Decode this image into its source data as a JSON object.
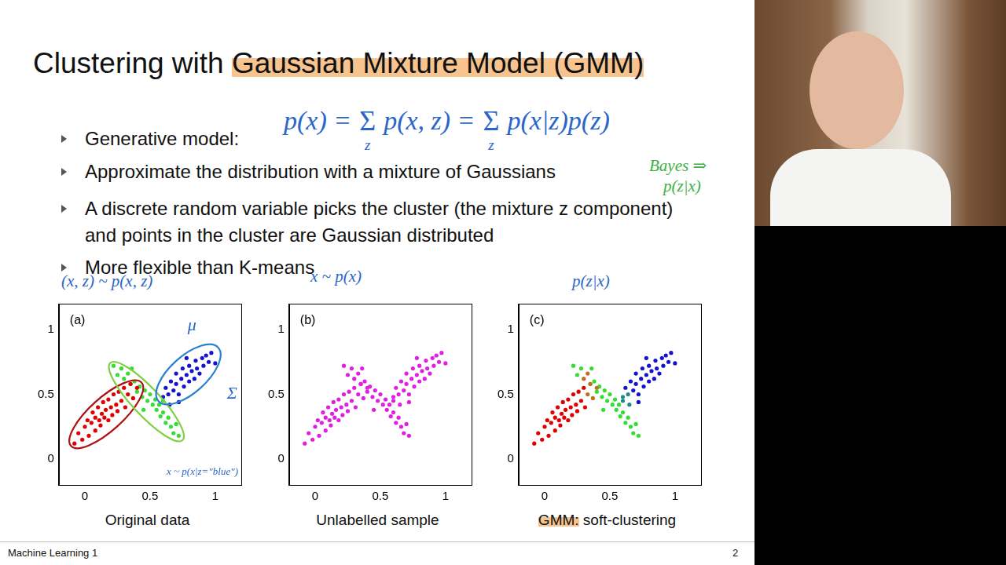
{
  "slide": {
    "title": "Clustering with Gaussian Mixture Model (GMM)",
    "highlights": [
      "Gaussian Mixture Model (GMM)",
      "GMM:"
    ],
    "bullets": [
      "Generative model:",
      "Approximate the distribution with a mixture of Gaussians",
      "A discrete random variable picks the cluster (the mixture z component) and points in the cluster are Gaussian distributed",
      "More flexible than K-means"
    ],
    "footer": "Machine Learning 1",
    "page": 2
  },
  "handwriting": {
    "formula": [
      {
        "text": "p(x) ="
      },
      {
        "sum": "Σ",
        "sub": "z"
      },
      {
        "text": "p(x, z) ="
      },
      {
        "sum": "Σ",
        "sub": "z"
      },
      {
        "text": "p(x|z)p(z)"
      }
    ],
    "bayes": [
      "Bayes ⇒",
      "p(z|x)"
    ],
    "above_charts": [
      "(x, z) ~ p(x, z)",
      "x ~ p(x)",
      "p(z|x)"
    ],
    "panel_a": [
      "μ",
      "Σ",
      "x ~ p(x|z=\"blue\")"
    ]
  },
  "chart_data": [
    {
      "type": "scatter",
      "title": "(a)",
      "xlabel": "Original data",
      "xlim": [
        -0.2,
        1.2
      ],
      "ylim": [
        -0.2,
        1.2
      ],
      "xticks": [
        0,
        0.5,
        1
      ],
      "yticks": [
        0,
        0.5,
        1
      ],
      "grid": false,
      "series": [
        {
          "color": "#e00000",
          "x": [
            -0.08,
            -0.05,
            -0.02,
            0.0,
            0.02,
            0.03,
            0.05,
            0.06,
            0.08,
            0.08,
            0.1,
            0.11,
            0.12,
            0.13,
            0.14,
            0.15,
            0.16,
            0.18,
            0.18,
            0.2,
            0.21,
            0.22,
            0.24,
            0.25,
            0.26,
            0.28,
            0.3,
            0.31,
            0.33,
            0.35,
            0.37,
            0.4
          ],
          "y": [
            0.12,
            0.2,
            0.15,
            0.25,
            0.3,
            0.18,
            0.28,
            0.36,
            0.22,
            0.32,
            0.4,
            0.3,
            0.26,
            0.35,
            0.44,
            0.32,
            0.38,
            0.3,
            0.46,
            0.4,
            0.34,
            0.5,
            0.42,
            0.37,
            0.52,
            0.45,
            0.55,
            0.4,
            0.5,
            0.58,
            0.47,
            0.55
          ]
        },
        {
          "color": "#33dd33",
          "x": [
            0.22,
            0.25,
            0.28,
            0.3,
            0.33,
            0.35,
            0.38,
            0.4,
            0.42,
            0.44,
            0.46,
            0.48,
            0.5,
            0.52,
            0.54,
            0.55,
            0.57,
            0.58,
            0.6,
            0.62,
            0.64,
            0.66,
            0.68,
            0.7,
            0.72,
            0.45,
            0.36,
            0.6
          ],
          "y": [
            0.72,
            0.65,
            0.7,
            0.62,
            0.66,
            0.58,
            0.6,
            0.52,
            0.56,
            0.48,
            0.53,
            0.45,
            0.5,
            0.42,
            0.46,
            0.38,
            0.42,
            0.33,
            0.36,
            0.28,
            0.32,
            0.25,
            0.2,
            0.27,
            0.18,
            0.38,
            0.7,
            0.45
          ]
        },
        {
          "color": "#1414d0",
          "x": [
            0.6,
            0.62,
            0.64,
            0.66,
            0.68,
            0.7,
            0.7,
            0.72,
            0.74,
            0.75,
            0.76,
            0.78,
            0.8,
            0.8,
            0.82,
            0.84,
            0.85,
            0.86,
            0.88,
            0.9,
            0.91,
            0.93,
            0.95,
            0.97,
            0.72,
            0.65,
            0.78,
            1.0
          ],
          "y": [
            0.48,
            0.55,
            0.5,
            0.6,
            0.53,
            0.58,
            0.66,
            0.5,
            0.62,
            0.7,
            0.56,
            0.65,
            0.6,
            0.72,
            0.68,
            0.62,
            0.76,
            0.7,
            0.66,
            0.78,
            0.72,
            0.8,
            0.75,
            0.82,
            0.44,
            0.42,
            0.78,
            0.74
          ]
        }
      ]
    },
    {
      "type": "scatter",
      "title": "(b)",
      "xlabel": "Unlabelled sample",
      "xlim": [
        -0.2,
        1.2
      ],
      "ylim": [
        -0.2,
        1.2
      ],
      "xticks": [
        0,
        0.5,
        1
      ],
      "yticks": [
        0,
        0.5,
        1
      ],
      "grid": false,
      "series": [
        {
          "color": "#e020e0",
          "x": [
            -0.08,
            -0.05,
            -0.02,
            0.0,
            0.02,
            0.03,
            0.05,
            0.06,
            0.08,
            0.08,
            0.1,
            0.11,
            0.12,
            0.13,
            0.14,
            0.15,
            0.16,
            0.18,
            0.18,
            0.2,
            0.21,
            0.22,
            0.24,
            0.25,
            0.26,
            0.28,
            0.3,
            0.31,
            0.33,
            0.35,
            0.37,
            0.4,
            0.22,
            0.25,
            0.28,
            0.3,
            0.33,
            0.35,
            0.38,
            0.4,
            0.42,
            0.44,
            0.46,
            0.48,
            0.5,
            0.52,
            0.54,
            0.55,
            0.57,
            0.58,
            0.6,
            0.62,
            0.64,
            0.66,
            0.68,
            0.7,
            0.72,
            0.45,
            0.36,
            0.6,
            0.6,
            0.62,
            0.64,
            0.66,
            0.68,
            0.7,
            0.7,
            0.72,
            0.74,
            0.75,
            0.76,
            0.78,
            0.8,
            0.8,
            0.82,
            0.84,
            0.85,
            0.86,
            0.88,
            0.9,
            0.91,
            0.93,
            0.95,
            0.97,
            0.72,
            0.65,
            0.78,
            1.0
          ],
          "y": [
            0.12,
            0.2,
            0.15,
            0.25,
            0.3,
            0.18,
            0.28,
            0.36,
            0.22,
            0.32,
            0.4,
            0.3,
            0.26,
            0.35,
            0.44,
            0.32,
            0.38,
            0.3,
            0.46,
            0.4,
            0.34,
            0.5,
            0.42,
            0.37,
            0.52,
            0.45,
            0.55,
            0.4,
            0.5,
            0.58,
            0.47,
            0.55,
            0.72,
            0.65,
            0.7,
            0.62,
            0.66,
            0.58,
            0.6,
            0.52,
            0.56,
            0.48,
            0.53,
            0.45,
            0.5,
            0.42,
            0.46,
            0.38,
            0.42,
            0.33,
            0.36,
            0.28,
            0.32,
            0.25,
            0.2,
            0.27,
            0.18,
            0.38,
            0.7,
            0.45,
            0.48,
            0.55,
            0.5,
            0.6,
            0.53,
            0.58,
            0.66,
            0.5,
            0.62,
            0.7,
            0.56,
            0.65,
            0.6,
            0.72,
            0.68,
            0.62,
            0.76,
            0.7,
            0.66,
            0.78,
            0.72,
            0.8,
            0.75,
            0.82,
            0.44,
            0.42,
            0.78,
            0.74
          ]
        }
      ]
    },
    {
      "type": "scatter",
      "title": "(c)",
      "xlabel": "GMM: soft-clustering",
      "xlim": [
        -0.2,
        1.2
      ],
      "ylim": [
        -0.2,
        1.2
      ],
      "xticks": [
        0,
        0.5,
        1
      ],
      "yticks": [
        0,
        0.5,
        1
      ],
      "grid": false,
      "series": [
        {
          "color": "#e00000",
          "x": [
            -0.08,
            -0.05,
            -0.02,
            0.0,
            0.02,
            0.03,
            0.05,
            0.06,
            0.08,
            0.08,
            0.1,
            0.11,
            0.12,
            0.13,
            0.14,
            0.15,
            0.16,
            0.18,
            0.18,
            0.2,
            0.21,
            0.22,
            0.24,
            0.25,
            0.26,
            0.28,
            0.3,
            0.31
          ],
          "y": [
            0.12,
            0.2,
            0.15,
            0.25,
            0.3,
            0.18,
            0.28,
            0.36,
            0.22,
            0.32,
            0.4,
            0.3,
            0.26,
            0.35,
            0.44,
            0.32,
            0.38,
            0.3,
            0.46,
            0.4,
            0.34,
            0.5,
            0.42,
            0.37,
            0.52,
            0.45,
            0.55,
            0.4
          ]
        },
        {
          "color": "#c0701c",
          "x": [
            0.33,
            0.35,
            0.37,
            0.4,
            0.3,
            0.33
          ],
          "y": [
            0.5,
            0.58,
            0.47,
            0.55,
            0.62,
            0.66
          ]
        },
        {
          "color": "#33dd33",
          "x": [
            0.22,
            0.25,
            0.28,
            0.35,
            0.38,
            0.4,
            0.42,
            0.44,
            0.46,
            0.48,
            0.5,
            0.52,
            0.54,
            0.55,
            0.57,
            0.58,
            0.6,
            0.62,
            0.64,
            0.66,
            0.68,
            0.7,
            0.72,
            0.45,
            0.36
          ],
          "y": [
            0.72,
            0.65,
            0.7,
            0.58,
            0.6,
            0.52,
            0.56,
            0.48,
            0.53,
            0.45,
            0.5,
            0.42,
            0.46,
            0.38,
            0.42,
            0.33,
            0.36,
            0.28,
            0.32,
            0.25,
            0.2,
            0.27,
            0.18,
            0.38,
            0.7
          ]
        },
        {
          "color": "#1f8a8a",
          "x": [
            0.6,
            0.6,
            0.64,
            0.65
          ],
          "y": [
            0.45,
            0.48,
            0.5,
            0.42
          ]
        },
        {
          "color": "#1414d0",
          "x": [
            0.62,
            0.66,
            0.68,
            0.7,
            0.7,
            0.72,
            0.74,
            0.75,
            0.76,
            0.78,
            0.8,
            0.8,
            0.82,
            0.84,
            0.85,
            0.86,
            0.88,
            0.9,
            0.91,
            0.93,
            0.95,
            0.97,
            0.72,
            0.78,
            1.0
          ],
          "y": [
            0.55,
            0.6,
            0.53,
            0.58,
            0.66,
            0.5,
            0.62,
            0.7,
            0.56,
            0.65,
            0.6,
            0.72,
            0.68,
            0.62,
            0.76,
            0.7,
            0.66,
            0.78,
            0.72,
            0.8,
            0.75,
            0.82,
            0.44,
            0.78,
            0.74
          ]
        }
      ]
    }
  ]
}
